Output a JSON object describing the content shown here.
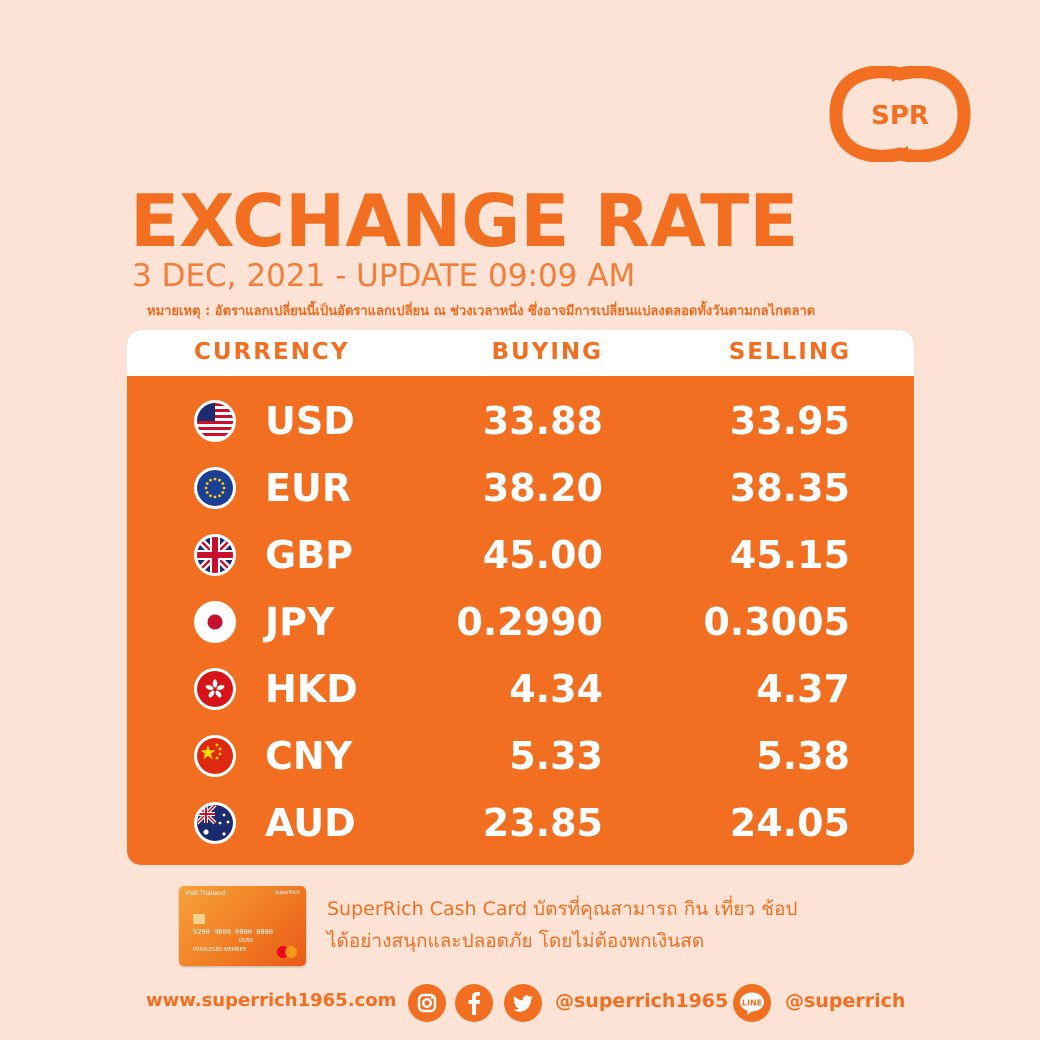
{
  "logo": {
    "text": "SPR"
  },
  "header": {
    "title": "EXCHANGE RATE",
    "subtitle": "3 DEC, 2021 - UPDATE 09:09 AM",
    "note": "หมายเหตุ : อัตราแลกเปลี่ยนนี้เป็นอัตราแลกเปลี่ยน ณ ช่วงเวลาหนึ่ง ซึ่งอาจมีการเปลี่ยนแปลงตลอดทั้งวันตามกลไกตลาด"
  },
  "table": {
    "headers": {
      "currency": "CURRENCY",
      "buying": "BUYING",
      "selling": "SELLING"
    },
    "rows": [
      {
        "code": "USD",
        "buying": "33.88",
        "selling": "33.95",
        "flag": "us-flag-icon"
      },
      {
        "code": "EUR",
        "buying": "38.20",
        "selling": "38.35",
        "flag": "eu-flag-icon"
      },
      {
        "code": "GBP",
        "buying": "45.00",
        "selling": "45.15",
        "flag": "uk-flag-icon"
      },
      {
        "code": "JPY",
        "buying": "0.2990",
        "selling": "0.3005",
        "flag": "jp-flag-icon"
      },
      {
        "code": "HKD",
        "buying": "4.34",
        "selling": "4.37",
        "flag": "hk-flag-icon"
      },
      {
        "code": "CNY",
        "buying": "5.33",
        "selling": "5.38",
        "flag": "cn-flag-icon"
      },
      {
        "code": "AUD",
        "buying": "23.85",
        "selling": "24.05",
        "flag": "au-flag-icon"
      }
    ]
  },
  "card": {
    "top_text": "Visit Thailand",
    "brand": "SuperRich",
    "number": "5290 9600 0000 0000",
    "expiry": "05/95",
    "member": "PRIVILEGED MEMBER"
  },
  "promo": {
    "line1": "SuperRich Cash Card บัตรที่คุณสามารถ กิน เที่ยว ช้อป",
    "line2": "ได้อย่างสนุกและปลอดภัย โดยไม่ต้องพกเงินสด"
  },
  "footer": {
    "website": "www.superrich1965.com",
    "social_handle": "@superrich1965",
    "line_handle": "@superrich"
  },
  "colors": {
    "accent": "#f26f21",
    "background": "#fce3d5",
    "white": "#ffffff"
  }
}
